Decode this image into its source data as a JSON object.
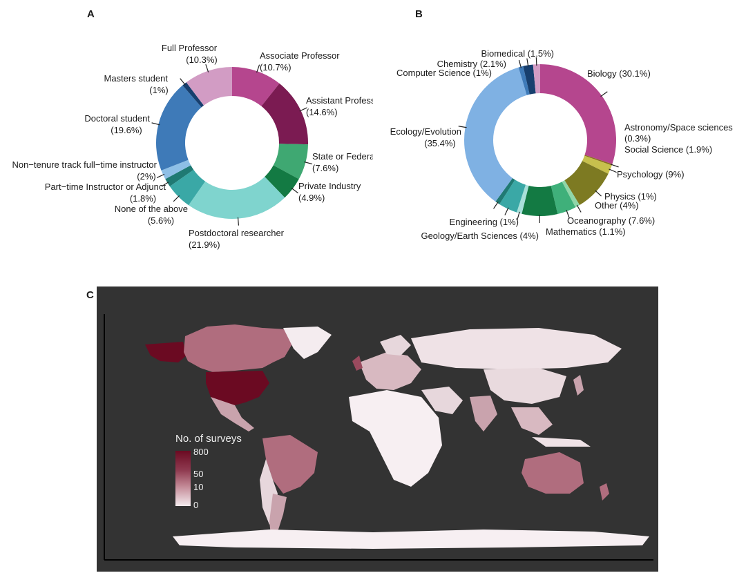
{
  "panels": {
    "a": "A",
    "b": "B",
    "c": "C"
  },
  "chart_data": [
    {
      "type": "pie",
      "panel": "A",
      "slices": [
        {
          "label": "Associate Professor",
          "value": 10.7,
          "pct": "(10.7%)",
          "color": "#b5468e"
        },
        {
          "label": "Assistant Professor",
          "value": 14.6,
          "pct": "(14.6%)",
          "color": "#7b1b52"
        },
        {
          "label": "State or Federal Employee",
          "value": 7.6,
          "pct": "(7.6%)",
          "color": "#3fa872"
        },
        {
          "label": "Private Industry",
          "value": 4.9,
          "pct": "(4.9%)",
          "color": "#137a43"
        },
        {
          "label": "Postdoctoral researcher",
          "value": 21.9,
          "pct": "(21.9%)",
          "color": "#7fd4ce"
        },
        {
          "label": "None of the above",
          "value": 5.6,
          "pct": "(5.6%)",
          "color": "#3aa8a6"
        },
        {
          "label": "Part−time Instructor or Adjunct",
          "value": 1.8,
          "pct": "(1.8%)",
          "color": "#1f7a73"
        },
        {
          "label": "Non−tenure track full−time instructor",
          "value": 2.0,
          "pct": "(2%)",
          "color": "#8ebfe6"
        },
        {
          "label": "Doctoral student",
          "value": 19.6,
          "pct": "(19.6%)",
          "color": "#3e7ab8"
        },
        {
          "label": "Masters student",
          "value": 1.0,
          "pct": "(1%)",
          "color": "#173f6e"
        },
        {
          "label": "Full Professor",
          "value": 10.3,
          "pct": "(10.3%)",
          "color": "#d29cc4"
        }
      ]
    },
    {
      "type": "pie",
      "panel": "B",
      "slices": [
        {
          "label": "Biology",
          "value": 30.1,
          "pct": "(30.1%)",
          "color": "#b5468e"
        },
        {
          "label": "Astronomy/Space sciences",
          "value": 0.3,
          "pct": "(0.3%)",
          "color": "#8a6e1f"
        },
        {
          "label": "Social Science",
          "value": 1.9,
          "pct": "(1.9%)",
          "color": "#c7c04d"
        },
        {
          "label": "Psychology",
          "value": 9.0,
          "pct": "(9%)",
          "color": "#7d7a22"
        },
        {
          "label": "Physics",
          "value": 1.0,
          "pct": "(1%)",
          "color": "#8fd6a8"
        },
        {
          "label": "Other",
          "value": 4.0,
          "pct": "(4%)",
          "color": "#3fb07a"
        },
        {
          "label": "Oceanography",
          "value": 7.6,
          "pct": "(7.6%)",
          "color": "#137a43"
        },
        {
          "label": "Mathematics",
          "value": 1.1,
          "pct": "(1.1%)",
          "color": "#a8e0da"
        },
        {
          "label": "Geology/Earth Sciences",
          "value": 4.0,
          "pct": "(4%)",
          "color": "#3aa8a6"
        },
        {
          "label": "Engineering",
          "value": 1.0,
          "pct": "(1%)",
          "color": "#1f7a73"
        },
        {
          "label": "Ecology/Evolution",
          "value": 35.4,
          "pct": "(35.4%)",
          "color": "#7fb1e3"
        },
        {
          "label": "Computer Science",
          "value": 1.0,
          "pct": "(1%)",
          "color": "#3e7ab8"
        },
        {
          "label": "Chemistry",
          "value": 2.1,
          "pct": "(2.1%)",
          "color": "#173f6e"
        },
        {
          "label": "Biomedical",
          "value": 1.5,
          "pct": "(1.5%)",
          "color": "#d29cc4"
        }
      ]
    },
    {
      "type": "heatmap",
      "panel": "C",
      "legend_title": "No. of surveys",
      "legend_ticks": [
        "800",
        "50",
        "10",
        "0"
      ],
      "background_color": "#333333",
      "scale_colors": [
        "#6b0a22",
        "#8f3a50",
        "#c48b98",
        "#f4ecef"
      ]
    }
  ]
}
